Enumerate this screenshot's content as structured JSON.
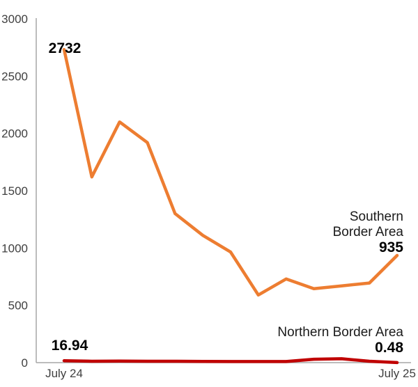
{
  "chart_data": {
    "type": "line",
    "title": "",
    "xlabel": "",
    "ylabel": "",
    "ylim": [
      0,
      3000
    ],
    "yticks": [
      0,
      500,
      1000,
      1500,
      2000,
      2500,
      3000
    ],
    "x": [
      "July 24",
      "",
      "",
      "",
      "",
      "",
      "",
      "",
      "",
      "",
      "",
      "",
      "July 25"
    ],
    "x_tick_labels": [
      "July 24",
      "July 25"
    ],
    "grid": false,
    "legend": "none",
    "series": [
      {
        "key": "southern",
        "name_lines": [
          "Southern",
          "Border Area"
        ],
        "color": "#ED7D31",
        "values": [
          2732,
          1620,
          2100,
          1920,
          1300,
          1110,
          965,
          590,
          730,
          645,
          670,
          695,
          935
        ],
        "start_label": "2732",
        "end_label": "935"
      },
      {
        "key": "northern",
        "name_lines": [
          "Northern Border Area"
        ],
        "color": "#C00000",
        "values": [
          16.94,
          12,
          14,
          12,
          12,
          11,
          10,
          10,
          10,
          30,
          34,
          12,
          0.48
        ],
        "start_label": "16.94",
        "end_label": "0.48"
      }
    ]
  }
}
